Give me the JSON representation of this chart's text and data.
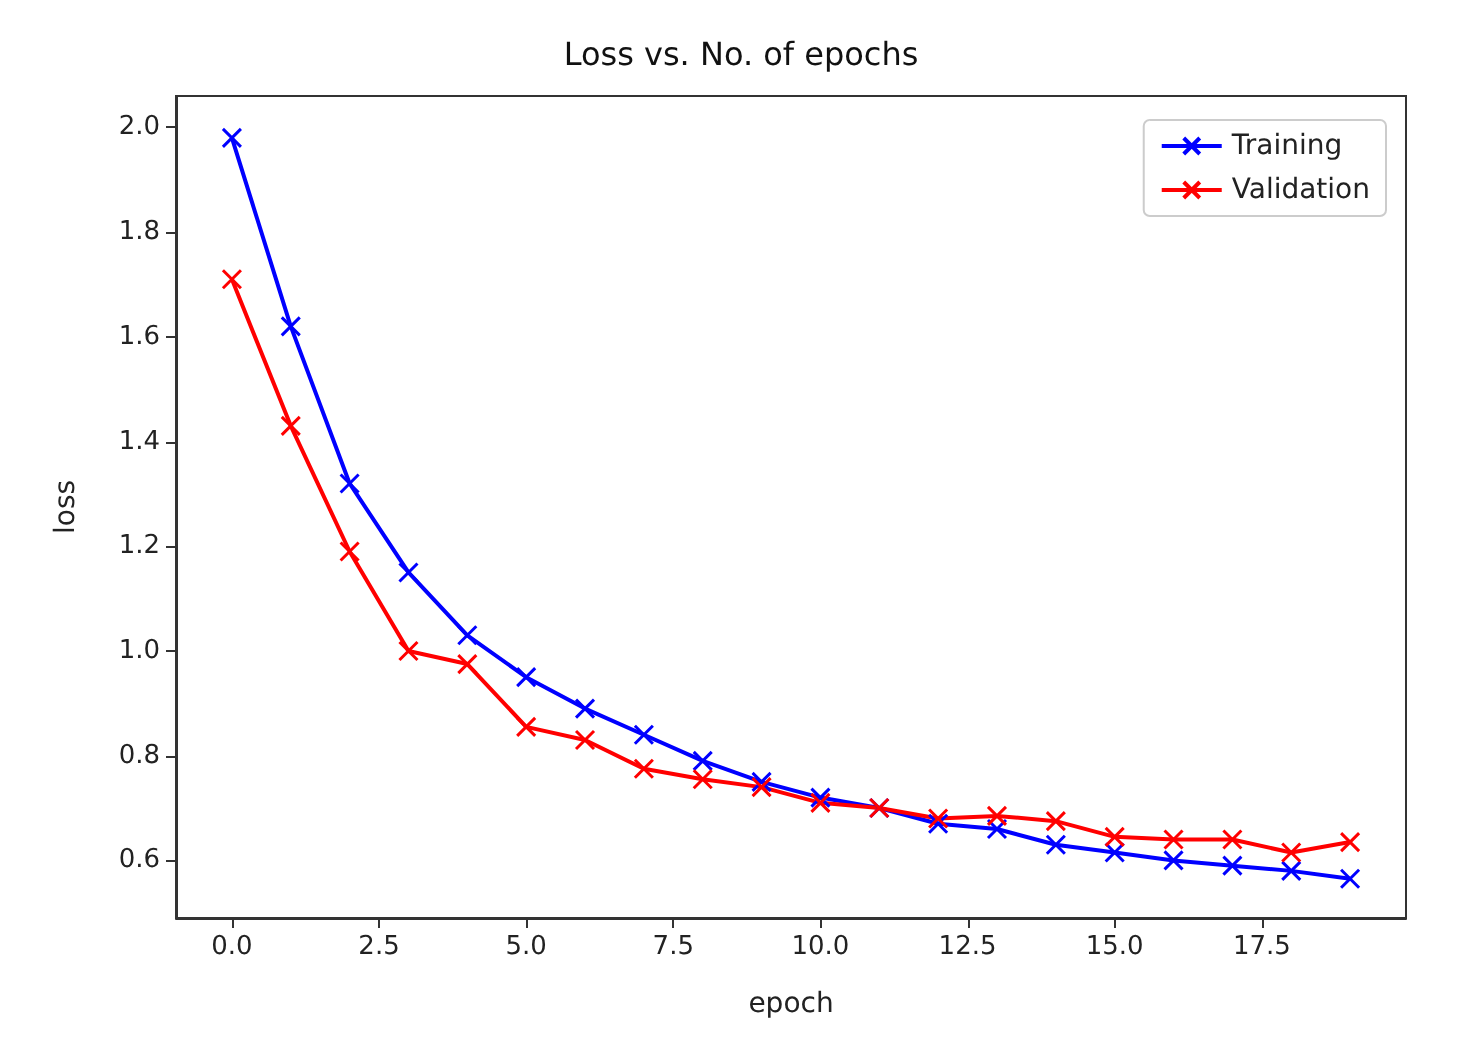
{
  "chart_data": {
    "type": "line",
    "title": "Loss vs. No. of epochs",
    "xlabel": "epoch",
    "ylabel": "loss",
    "x": [
      0,
      1,
      2,
      3,
      4,
      5,
      6,
      7,
      8,
      9,
      10,
      11,
      12,
      13,
      14,
      15,
      16,
      17,
      18,
      19
    ],
    "series": [
      {
        "name": "Training",
        "color": "#0000ff",
        "values": [
          1.98,
          1.62,
          1.32,
          1.15,
          1.03,
          0.95,
          0.89,
          0.84,
          0.79,
          0.75,
          0.72,
          0.7,
          0.67,
          0.66,
          0.63,
          0.615,
          0.6,
          0.59,
          0.58,
          0.565
        ]
      },
      {
        "name": "Validation",
        "color": "#ff0000",
        "values": [
          1.71,
          1.43,
          1.19,
          1.0,
          0.975,
          0.855,
          0.83,
          0.775,
          0.755,
          0.74,
          0.71,
          0.7,
          0.68,
          0.685,
          0.675,
          0.645,
          0.64,
          0.64,
          0.615,
          0.635
        ]
      }
    ],
    "xlim": [
      -0.95,
      19.95
    ],
    "xticks": [
      {
        "value": 0,
        "label": "0.0"
      },
      {
        "value": 2.5,
        "label": "2.5"
      },
      {
        "value": 5,
        "label": "5.0"
      },
      {
        "value": 7.5,
        "label": "7.5"
      },
      {
        "value": 10,
        "label": "10.0"
      },
      {
        "value": 12.5,
        "label": "12.5"
      },
      {
        "value": 15,
        "label": "15.0"
      },
      {
        "value": 17.5,
        "label": "17.5"
      }
    ],
    "ylim": [
      0.49,
      2.06
    ],
    "yticks": [
      0.6,
      0.8,
      {
        "value": 1,
        "label": "1.0"
      },
      1.2,
      1.4,
      1.6,
      1.8,
      {
        "value": 2,
        "label": "2.0"
      }
    ],
    "grid": false,
    "legend": "top right",
    "marker": "cross",
    "line_style": "solid"
  }
}
